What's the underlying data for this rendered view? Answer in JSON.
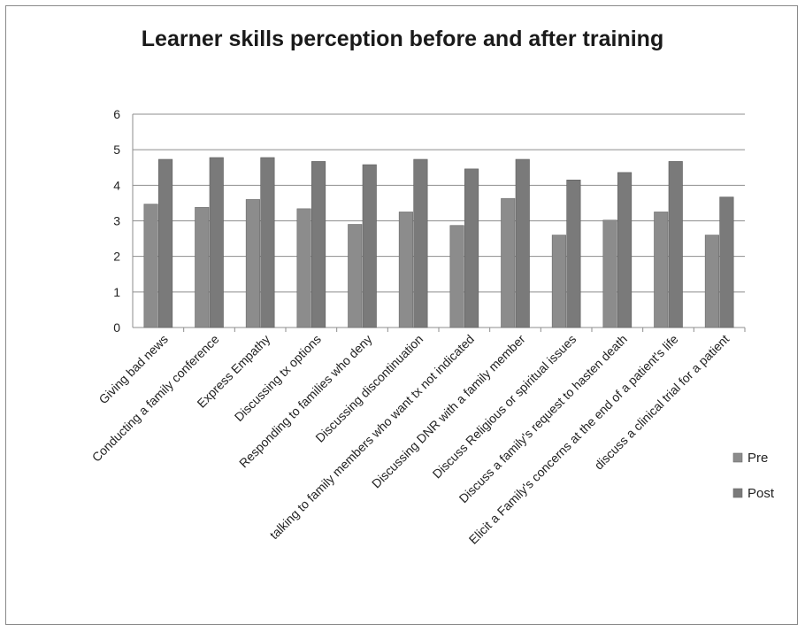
{
  "chart_data": {
    "type": "bar",
    "title": "Learner skills perception before and after training",
    "xlabel": "",
    "ylabel": "",
    "ylim": [
      0,
      6
    ],
    "yticks": [
      0,
      1,
      2,
      3,
      4,
      5,
      6
    ],
    "grid": true,
    "legend_position": "right",
    "categories": [
      "Giving bad news",
      "Conducting a family conference",
      "Express Empathy",
      "Discussing tx options",
      "Responding to families who deny",
      "Discussing discontinuation",
      "talking to family members who want tx not indicated",
      "Discussing DNR with a family member",
      "Discuss Religious or spiritual issues",
      "Discuss a family's request to hasten death",
      "Elicit a Family's concerns at the end of a patient's life",
      "discuss a clinical trial for a patient"
    ],
    "series": [
      {
        "name": "Pre",
        "color": "#8c8c8c",
        "values": [
          3.47,
          3.38,
          3.6,
          3.34,
          2.9,
          3.25,
          2.87,
          3.63,
          2.6,
          3.02,
          3.25,
          2.6
        ]
      },
      {
        "name": "Post",
        "color": "#7a7a7a",
        "values": [
          4.73,
          4.78,
          4.78,
          4.67,
          4.58,
          4.73,
          4.46,
          4.73,
          4.15,
          4.36,
          4.67,
          3.67
        ]
      }
    ]
  }
}
